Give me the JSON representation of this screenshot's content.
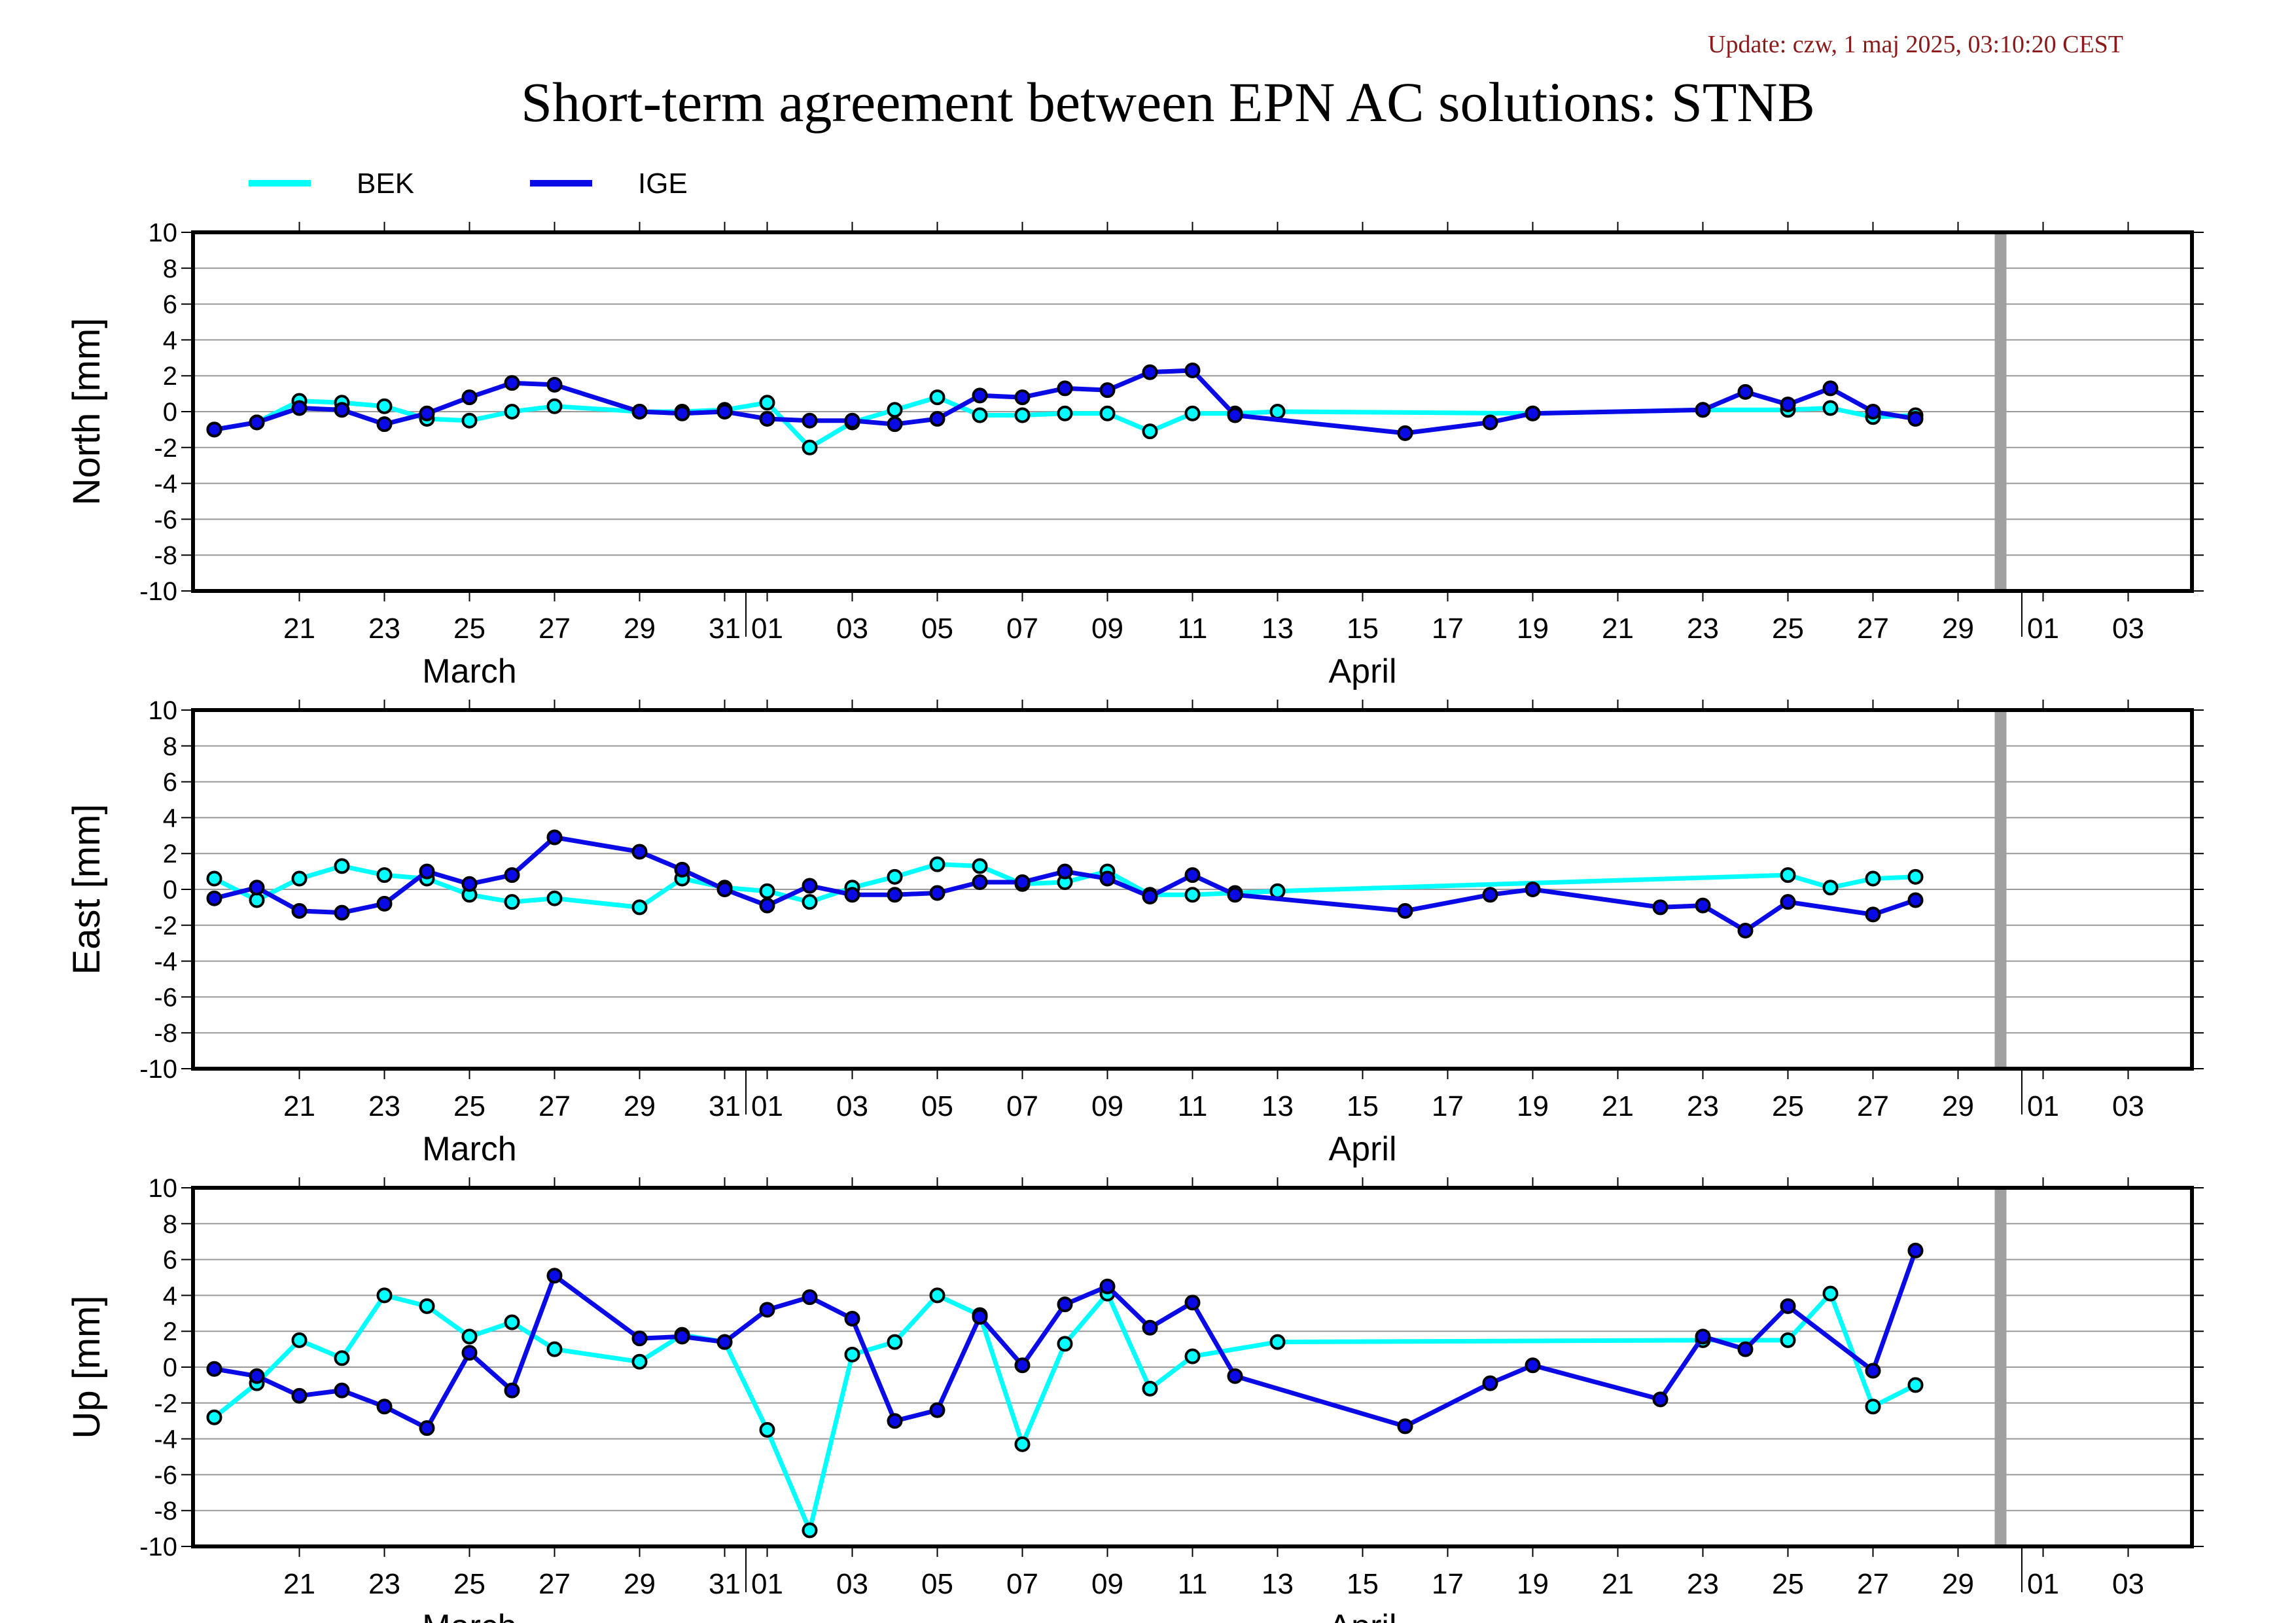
{
  "header": {
    "update": "Update: czw, 1 maj 2025, 03:10:20 CEST",
    "title": "Short-term agreement between EPN AC solutions: STNB"
  },
  "colors": {
    "BEK": "#00ffff",
    "IGE": "#0a0ae6",
    "grid": "#999999",
    "marker": "#000000",
    "today_bar": "#a0a0a0"
  },
  "chart_data": {
    "type": "line",
    "x_axis": {
      "start": "2025-03-19",
      "end": "2025-05-04",
      "ticks": [
        {
          "date": "2025-03-21",
          "label": "21"
        },
        {
          "date": "2025-03-23",
          "label": "23"
        },
        {
          "date": "2025-03-25",
          "label": "25"
        },
        {
          "date": "2025-03-27",
          "label": "27"
        },
        {
          "date": "2025-03-29",
          "label": "29"
        },
        {
          "date": "2025-03-31",
          "label": "31"
        },
        {
          "date": "2025-04-01",
          "label": "01"
        },
        {
          "date": "2025-04-03",
          "label": "03"
        },
        {
          "date": "2025-04-05",
          "label": "05"
        },
        {
          "date": "2025-04-07",
          "label": "07"
        },
        {
          "date": "2025-04-09",
          "label": "09"
        },
        {
          "date": "2025-04-11",
          "label": "11"
        },
        {
          "date": "2025-04-13",
          "label": "13"
        },
        {
          "date": "2025-04-15",
          "label": "15"
        },
        {
          "date": "2025-04-17",
          "label": "17"
        },
        {
          "date": "2025-04-19",
          "label": "19"
        },
        {
          "date": "2025-04-21",
          "label": "21"
        },
        {
          "date": "2025-04-23",
          "label": "23"
        },
        {
          "date": "2025-04-25",
          "label": "25"
        },
        {
          "date": "2025-04-27",
          "label": "27"
        },
        {
          "date": "2025-04-29",
          "label": "29"
        },
        {
          "date": "2025-05-01",
          "label": "01"
        },
        {
          "date": "2025-05-03",
          "label": "03"
        }
      ],
      "month_boundaries": [
        "2025-04-01",
        "2025-05-01"
      ],
      "months": [
        {
          "label": "March",
          "date": "2025-03-25"
        },
        {
          "label": "April",
          "date": "2025-04-15"
        }
      ],
      "today_marker": "2025-04-30"
    },
    "legend": [
      {
        "name": "BEK",
        "color": "#00ffff"
      },
      {
        "name": "IGE",
        "color": "#0a0ae6"
      }
    ],
    "panels": [
      {
        "name": "north",
        "ylabel": "North [mm]",
        "ylim": [
          -10,
          10
        ],
        "yticks": [
          -10,
          -8,
          -6,
          -4,
          -2,
          0,
          2,
          4,
          6,
          8,
          10
        ],
        "series": [
          {
            "name": "BEK",
            "points": [
              [
                "2025-03-19",
                -1.0
              ],
              [
                "2025-03-20",
                -0.6
              ],
              [
                "2025-03-21",
                0.6
              ],
              [
                "2025-03-22",
                0.5
              ],
              [
                "2025-03-23",
                0.3
              ],
              [
                "2025-03-24",
                -0.4
              ],
              [
                "2025-03-25",
                -0.5
              ],
              [
                "2025-03-26",
                0.0
              ],
              [
                "2025-03-27",
                0.3
              ],
              [
                "2025-03-29",
                0.0
              ],
              [
                "2025-03-30",
                0.0
              ],
              [
                "2025-03-31",
                0.1
              ],
              [
                "2025-04-01",
                0.5
              ],
              [
                "2025-04-02",
                -2.0
              ],
              [
                "2025-04-03",
                -0.6
              ],
              [
                "2025-04-04",
                0.1
              ],
              [
                "2025-04-05",
                0.8
              ],
              [
                "2025-04-06",
                -0.2
              ],
              [
                "2025-04-07",
                -0.2
              ],
              [
                "2025-04-08",
                -0.1
              ],
              [
                "2025-04-09",
                -0.1
              ],
              [
                "2025-04-10",
                -1.1
              ],
              [
                "2025-04-11",
                -0.1
              ],
              [
                "2025-04-12",
                -0.1
              ],
              [
                "2025-04-13",
                0.0
              ],
              [
                "2025-04-19",
                -0.1
              ],
              [
                "2025-04-23",
                0.1
              ],
              [
                "2025-04-25",
                0.1
              ],
              [
                "2025-04-26",
                0.2
              ],
              [
                "2025-04-27",
                -0.3
              ],
              [
                "2025-04-28",
                -0.2
              ]
            ]
          },
          {
            "name": "IGE",
            "points": [
              [
                "2025-03-19",
                -1.0
              ],
              [
                "2025-03-20",
                -0.6
              ],
              [
                "2025-03-21",
                0.2
              ],
              [
                "2025-03-22",
                0.1
              ],
              [
                "2025-03-23",
                -0.7
              ],
              [
                "2025-03-24",
                -0.1
              ],
              [
                "2025-03-25",
                0.8
              ],
              [
                "2025-03-26",
                1.6
              ],
              [
                "2025-03-27",
                1.5
              ],
              [
                "2025-03-29",
                0.0
              ],
              [
                "2025-03-30",
                -0.1
              ],
              [
                "2025-03-31",
                0.0
              ],
              [
                "2025-04-01",
                -0.4
              ],
              [
                "2025-04-02",
                -0.5
              ],
              [
                "2025-04-03",
                -0.5
              ],
              [
                "2025-04-04",
                -0.7
              ],
              [
                "2025-04-05",
                -0.4
              ],
              [
                "2025-04-06",
                0.9
              ],
              [
                "2025-04-07",
                0.8
              ],
              [
                "2025-04-08",
                1.3
              ],
              [
                "2025-04-09",
                1.2
              ],
              [
                "2025-04-10",
                2.2
              ],
              [
                "2025-04-11",
                2.3
              ],
              [
                "2025-04-12",
                -0.2
              ],
              [
                "2025-04-16",
                -1.2
              ],
              [
                "2025-04-18",
                -0.6
              ],
              [
                "2025-04-19",
                -0.1
              ],
              [
                "2025-04-23",
                0.1
              ],
              [
                "2025-04-24",
                1.1
              ],
              [
                "2025-04-25",
                0.4
              ],
              [
                "2025-04-26",
                1.3
              ],
              [
                "2025-04-27",
                0.0
              ],
              [
                "2025-04-28",
                -0.4
              ]
            ]
          }
        ]
      },
      {
        "name": "east",
        "ylabel": "East [mm]",
        "ylim": [
          -10,
          10
        ],
        "yticks": [
          -10,
          -8,
          -6,
          -4,
          -2,
          0,
          2,
          4,
          6,
          8,
          10
        ],
        "series": [
          {
            "name": "BEK",
            "points": [
              [
                "2025-03-19",
                0.6
              ],
              [
                "2025-03-20",
                -0.6
              ],
              [
                "2025-03-21",
                0.6
              ],
              [
                "2025-03-22",
                1.3
              ],
              [
                "2025-03-23",
                0.8
              ],
              [
                "2025-03-24",
                0.6
              ],
              [
                "2025-03-25",
                -0.3
              ],
              [
                "2025-03-26",
                -0.7
              ],
              [
                "2025-03-27",
                -0.5
              ],
              [
                "2025-03-29",
                -1.0
              ],
              [
                "2025-03-30",
                0.6
              ],
              [
                "2025-03-31",
                0.1
              ],
              [
                "2025-04-01",
                -0.1
              ],
              [
                "2025-04-02",
                -0.7
              ],
              [
                "2025-04-03",
                0.1
              ],
              [
                "2025-04-04",
                0.7
              ],
              [
                "2025-04-05",
                1.4
              ],
              [
                "2025-04-06",
                1.3
              ],
              [
                "2025-04-07",
                0.3
              ],
              [
                "2025-04-08",
                0.4
              ],
              [
                "2025-04-09",
                1.0
              ],
              [
                "2025-04-10",
                -0.3
              ],
              [
                "2025-04-11",
                -0.3
              ],
              [
                "2025-04-12",
                -0.2
              ],
              [
                "2025-04-13",
                -0.1
              ],
              [
                "2025-04-25",
                0.8
              ],
              [
                "2025-04-26",
                0.1
              ],
              [
                "2025-04-27",
                0.6
              ],
              [
                "2025-04-28",
                0.7
              ]
            ]
          },
          {
            "name": "IGE",
            "points": [
              [
                "2025-03-19",
                -0.5
              ],
              [
                "2025-03-20",
                0.1
              ],
              [
                "2025-03-21",
                -1.2
              ],
              [
                "2025-03-22",
                -1.3
              ],
              [
                "2025-03-23",
                -0.8
              ],
              [
                "2025-03-24",
                1.0
              ],
              [
                "2025-03-25",
                0.3
              ],
              [
                "2025-03-26",
                0.8
              ],
              [
                "2025-03-27",
                2.9
              ],
              [
                "2025-03-29",
                2.1
              ],
              [
                "2025-03-30",
                1.1
              ],
              [
                "2025-03-31",
                0.0
              ],
              [
                "2025-04-01",
                -0.9
              ],
              [
                "2025-04-02",
                0.2
              ],
              [
                "2025-04-03",
                -0.3
              ],
              [
                "2025-04-04",
                -0.3
              ],
              [
                "2025-04-05",
                -0.2
              ],
              [
                "2025-04-06",
                0.4
              ],
              [
                "2025-04-07",
                0.4
              ],
              [
                "2025-04-08",
                1.0
              ],
              [
                "2025-04-09",
                0.6
              ],
              [
                "2025-04-10",
                -0.4
              ],
              [
                "2025-04-11",
                0.8
              ],
              [
                "2025-04-12",
                -0.3
              ],
              [
                "2025-04-16",
                -1.2
              ],
              [
                "2025-04-18",
                -0.3
              ],
              [
                "2025-04-19",
                0.0
              ],
              [
                "2025-04-22",
                -1.0
              ],
              [
                "2025-04-23",
                -0.9
              ],
              [
                "2025-04-24",
                -2.3
              ],
              [
                "2025-04-25",
                -0.7
              ],
              [
                "2025-04-27",
                -1.4
              ],
              [
                "2025-04-28",
                -0.6
              ]
            ]
          }
        ]
      },
      {
        "name": "up",
        "ylabel": "Up [mm]",
        "ylim": [
          -10,
          10
        ],
        "yticks": [
          -10,
          -8,
          -6,
          -4,
          -2,
          0,
          2,
          4,
          6,
          8,
          10
        ],
        "series": [
          {
            "name": "BEK",
            "points": [
              [
                "2025-03-19",
                -2.8
              ],
              [
                "2025-03-20",
                -0.9
              ],
              [
                "2025-03-21",
                1.5
              ],
              [
                "2025-03-22",
                0.5
              ],
              [
                "2025-03-23",
                4.0
              ],
              [
                "2025-03-24",
                3.4
              ],
              [
                "2025-03-25",
                1.7
              ],
              [
                "2025-03-26",
                2.5
              ],
              [
                "2025-03-27",
                1.0
              ],
              [
                "2025-03-29",
                0.3
              ],
              [
                "2025-03-30",
                1.8
              ],
              [
                "2025-03-31",
                1.4
              ],
              [
                "2025-04-01",
                -3.5
              ],
              [
                "2025-04-02",
                -9.1
              ],
              [
                "2025-04-03",
                0.7
              ],
              [
                "2025-04-04",
                1.4
              ],
              [
                "2025-04-05",
                4.0
              ],
              [
                "2025-04-06",
                2.9
              ],
              [
                "2025-04-07",
                -4.3
              ],
              [
                "2025-04-08",
                1.3
              ],
              [
                "2025-04-09",
                4.1
              ],
              [
                "2025-04-10",
                -1.2
              ],
              [
                "2025-04-11",
                0.6
              ],
              [
                "2025-04-13",
                1.4
              ],
              [
                "2025-04-23",
                1.5
              ],
              [
                "2025-04-25",
                1.5
              ],
              [
                "2025-04-26",
                4.1
              ],
              [
                "2025-04-27",
                -2.2
              ],
              [
                "2025-04-28",
                -1.0
              ]
            ]
          },
          {
            "name": "IGE",
            "points": [
              [
                "2025-03-19",
                -0.1
              ],
              [
                "2025-03-20",
                -0.5
              ],
              [
                "2025-03-21",
                -1.6
              ],
              [
                "2025-03-22",
                -1.3
              ],
              [
                "2025-03-23",
                -2.2
              ],
              [
                "2025-03-24",
                -3.4
              ],
              [
                "2025-03-25",
                0.8
              ],
              [
                "2025-03-26",
                -1.3
              ],
              [
                "2025-03-27",
                5.1
              ],
              [
                "2025-03-29",
                1.6
              ],
              [
                "2025-03-30",
                1.7
              ],
              [
                "2025-03-31",
                1.4
              ],
              [
                "2025-04-01",
                3.2
              ],
              [
                "2025-04-02",
                3.9
              ],
              [
                "2025-04-03",
                2.7
              ],
              [
                "2025-04-04",
                -3.0
              ],
              [
                "2025-04-05",
                -2.4
              ],
              [
                "2025-04-06",
                2.8
              ],
              [
                "2025-04-07",
                0.1
              ],
              [
                "2025-04-08",
                3.5
              ],
              [
                "2025-04-09",
                4.5
              ],
              [
                "2025-04-10",
                2.2
              ],
              [
                "2025-04-11",
                3.6
              ],
              [
                "2025-04-12",
                -0.5
              ],
              [
                "2025-04-16",
                -3.3
              ],
              [
                "2025-04-18",
                -0.9
              ],
              [
                "2025-04-19",
                0.1
              ],
              [
                "2025-04-22",
                -1.8
              ],
              [
                "2025-04-23",
                1.7
              ],
              [
                "2025-04-24",
                1.0
              ],
              [
                "2025-04-25",
                3.4
              ],
              [
                "2025-04-27",
                -0.2
              ],
              [
                "2025-04-28",
                6.5
              ]
            ]
          }
        ]
      }
    ]
  }
}
